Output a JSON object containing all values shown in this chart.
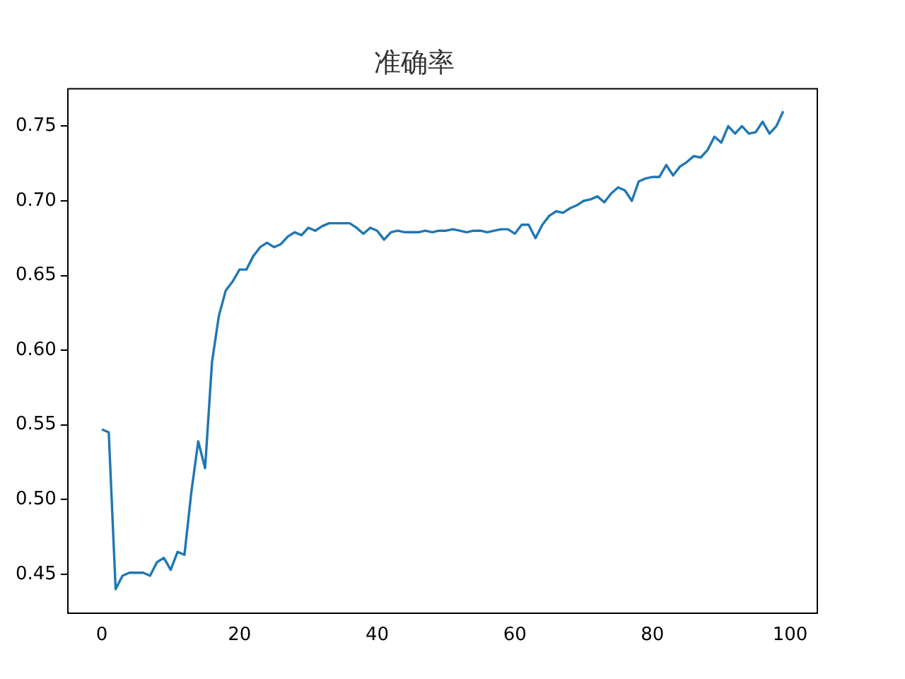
{
  "chart_data": {
    "type": "line",
    "title": "准确率",
    "x": [
      0,
      1,
      2,
      3,
      4,
      5,
      6,
      7,
      8,
      9,
      10,
      11,
      12,
      13,
      14,
      15,
      16,
      17,
      18,
      19,
      20,
      21,
      22,
      23,
      24,
      25,
      26,
      27,
      28,
      29,
      30,
      31,
      32,
      33,
      34,
      35,
      36,
      37,
      38,
      39,
      40,
      41,
      42,
      43,
      44,
      45,
      46,
      47,
      48,
      49,
      50,
      51,
      52,
      53,
      54,
      55,
      56,
      57,
      58,
      59,
      60,
      61,
      62,
      63,
      64,
      65,
      66,
      67,
      68,
      69,
      70,
      71,
      72,
      73,
      74,
      75,
      76,
      77,
      78,
      79,
      80,
      81,
      82,
      83,
      84,
      85,
      86,
      87,
      88,
      89,
      90,
      91,
      92,
      93,
      94,
      95,
      96,
      97,
      98,
      99
    ],
    "series": [
      {
        "color": "#1f77b4",
        "values": [
          0.547,
          0.545,
          0.44,
          0.449,
          0.451,
          0.451,
          0.451,
          0.449,
          0.458,
          0.461,
          0.453,
          0.465,
          0.463,
          0.505,
          0.539,
          0.521,
          0.592,
          0.623,
          0.64,
          0.646,
          0.654,
          0.654,
          0.663,
          0.669,
          0.672,
          0.669,
          0.671,
          0.676,
          0.679,
          0.677,
          0.682,
          0.68,
          0.683,
          0.685,
          0.685,
          0.685,
          0.685,
          0.682,
          0.678,
          0.682,
          0.68,
          0.674,
          0.679,
          0.68,
          0.679,
          0.679,
          0.679,
          0.68,
          0.679,
          0.68,
          0.68,
          0.681,
          0.68,
          0.679,
          0.68,
          0.68,
          0.679,
          0.68,
          0.681,
          0.681,
          0.678,
          0.684,
          0.684,
          0.675,
          0.684,
          0.69,
          0.693,
          0.692,
          0.695,
          0.697,
          0.7,
          0.701,
          0.703,
          0.699,
          0.705,
          0.709,
          0.707,
          0.7,
          0.713,
          0.715,
          0.716,
          0.716,
          0.724,
          0.717,
          0.723,
          0.726,
          0.73,
          0.729,
          0.734,
          0.743,
          0.739,
          0.75,
          0.745,
          0.75,
          0.745,
          0.746,
          0.753,
          0.745,
          0.75,
          0.76
        ]
      }
    ],
    "xlim": [
      -4.95,
      103.95
    ],
    "xticks": [
      0,
      20,
      40,
      60,
      80,
      100
    ],
    "ylim": [
      0.424,
      0.775
    ],
    "yticks": [
      0.45,
      {
        "value": 0.5,
        "label": "0.50"
      },
      0.55,
      {
        "value": 0.6,
        "label": "0.60"
      },
      0.65,
      {
        "value": 0.7,
        "label": "0.70"
      },
      0.75
    ],
    "grid": false,
    "legend": false
  }
}
